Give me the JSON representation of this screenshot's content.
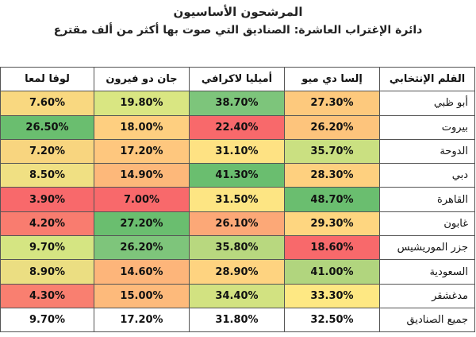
{
  "title": "المرشحون الأساسيون",
  "subtitle": "دائرة الإغتراب العاشرة: الصناديق التي صوت بها أكثر من ألف مقترع",
  "headers": [
    "القلم الإنتخابي",
    "إلسا دي ميو",
    "أميليا لاكرافي",
    "جان دو فيرون",
    "لوقا لمعا"
  ],
  "rows": [
    {
      "name": "أبو ظبي",
      "values": [
        "27.30%",
        "38.70%",
        "19.80%",
        "7.60%"
      ],
      "colors": [
        "#fdc97d",
        "#7dc57b",
        "#d9e682",
        "#f9d880"
      ]
    },
    {
      "name": "بيروت",
      "values": [
        "26.20%",
        "22.40%",
        "18.00%",
        "26.50%"
      ],
      "colors": [
        "#fdc47c",
        "#f8696b",
        "#fecf80",
        "#6abe6f"
      ]
    },
    {
      "name": "الدوحة",
      "values": [
        "35.70%",
        "31.10%",
        "17.20%",
        "7.20%"
      ],
      "colors": [
        "#cae081",
        "#fee283",
        "#fec77e",
        "#f8d57f"
      ]
    },
    {
      "name": "دبي",
      "values": [
        "28.30%",
        "41.30%",
        "14.90%",
        "8.50%"
      ],
      "colors": [
        "#fed07f",
        "#6abe6f",
        "#fdb87a",
        "#f0e083"
      ]
    },
    {
      "name": "القاهرة",
      "values": [
        "48.70%",
        "31.50%",
        "7.00%",
        "3.90%"
      ],
      "colors": [
        "#6abe6f",
        "#fde583",
        "#f8696b",
        "#f8696b"
      ]
    },
    {
      "name": "غابون",
      "values": [
        "29.30%",
        "26.10%",
        "27.20%",
        "4.20%"
      ],
      "colors": [
        "#fed680",
        "#fca877",
        "#6abe6f",
        "#f97c6f"
      ]
    },
    {
      "name": "جزر الموريشيس",
      "values": [
        "18.60%",
        "35.80%",
        "26.20%",
        "9.70%"
      ],
      "colors": [
        "#f8696b",
        "#b8d87f",
        "#7ec57b",
        "#d5e582"
      ]
    },
    {
      "name": "السعودية",
      "values": [
        "41.00%",
        "28.90%",
        "14.60%",
        "8.90%"
      ],
      "colors": [
        "#b1d57e",
        "#fed380",
        "#fdb57a",
        "#ebde82"
      ]
    },
    {
      "name": "مدغشقر",
      "values": [
        "33.30%",
        "34.40%",
        "15.00%",
        "4.30%"
      ],
      "colors": [
        "#fee883",
        "#d2e281",
        "#fdba7b",
        "#f97f70"
      ]
    }
  ],
  "total": {
    "name": "جميع الصناديق",
    "values": [
      "32.50%",
      "31.80%",
      "17.20%",
      "9.70%"
    ]
  }
}
